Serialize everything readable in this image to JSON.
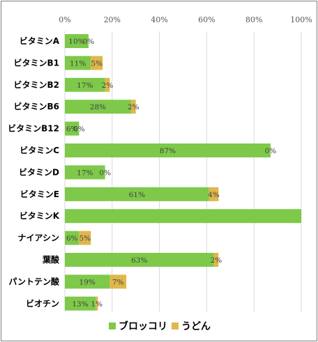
{
  "chart_data": {
    "type": "bar",
    "orientation": "horizontal",
    "stacked": true,
    "categories": [
      "ビタミンA",
      "ビタミンB1",
      "ビタミンB2",
      "ビタミンB6",
      "ビタミンB12",
      "ビタミンC",
      "ビタミンD",
      "ビタミンE",
      "ビタミンK",
      "ナイアシン",
      "葉酸",
      "パントテン酸",
      "ビオチン"
    ],
    "series": [
      {
        "name": "ブロッコリ",
        "color": "#7ec94a",
        "values": [
          10,
          11,
          17,
          28,
          6,
          87,
          17,
          61,
          100,
          6,
          63,
          19,
          13
        ],
        "labels": [
          "10%",
          "11%",
          "17%",
          "28%",
          "6%",
          "87%",
          "17%",
          "61%",
          "",
          "6%",
          "63%",
          "19%",
          "13%"
        ]
      },
      {
        "name": "うどん",
        "color": "#e0b74b",
        "values": [
          0,
          5,
          2,
          2,
          0,
          0,
          0,
          4,
          0,
          5,
          2,
          7,
          1
        ],
        "labels": [
          "0%",
          "5%",
          "2%",
          "2%",
          "0%",
          "0%",
          "0%",
          "4%",
          "",
          "5%",
          "2%",
          "7%",
          "1%"
        ]
      }
    ],
    "xlim": [
      0,
      100
    ],
    "xticks": [
      "0%",
      "20%",
      "40%",
      "60%",
      "80%",
      "100%"
    ],
    "grid": true,
    "legend": "bottom"
  }
}
